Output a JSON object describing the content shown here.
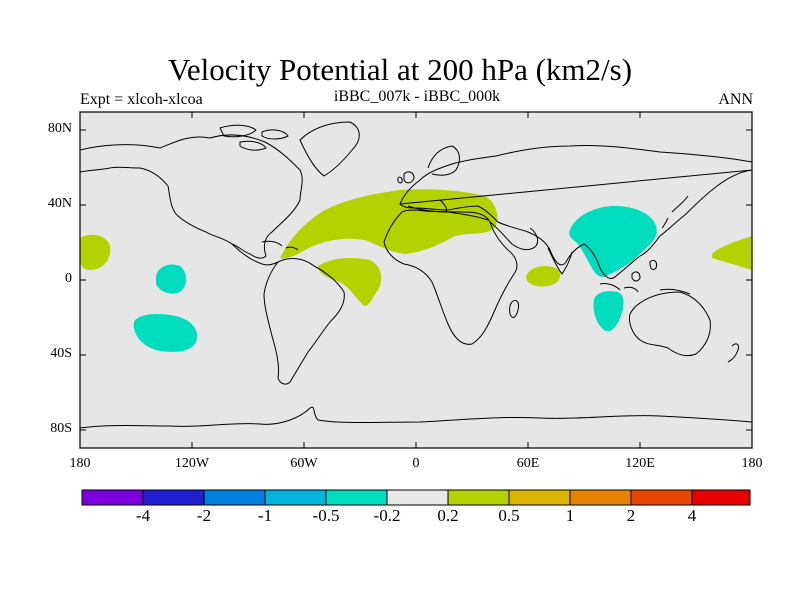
{
  "title": "Velocity Potential at 200 hPa (km2/s)",
  "left_string": "Expt = xlcoh-xlcoa",
  "center_string": "iBBC_007k - iBBC_000k",
  "right_string": "ANN",
  "colors": {
    "ocean_land_bg": "#e6e6e6",
    "positive_fill": "#b4d200",
    "negative_fill": "#00dcbe"
  },
  "y_ticks": [
    "80N",
    "40N",
    "0",
    "40S",
    "80S"
  ],
  "x_ticks": [
    "180",
    "120W",
    "60W",
    "0",
    "60E",
    "120E",
    "180"
  ],
  "labelbar": {
    "colors": [
      "#7b00dc",
      "#2020d0",
      "#0080dc",
      "#00b4dc",
      "#00dcbe",
      "#e8e8e8",
      "#b4d200",
      "#dcb400",
      "#e68200",
      "#e64600",
      "#e60000"
    ],
    "labels": [
      "-4",
      "-2",
      "-1",
      "-0.5",
      "-0.2",
      "0.2",
      "0.5",
      "1",
      "2",
      "4"
    ]
  }
}
